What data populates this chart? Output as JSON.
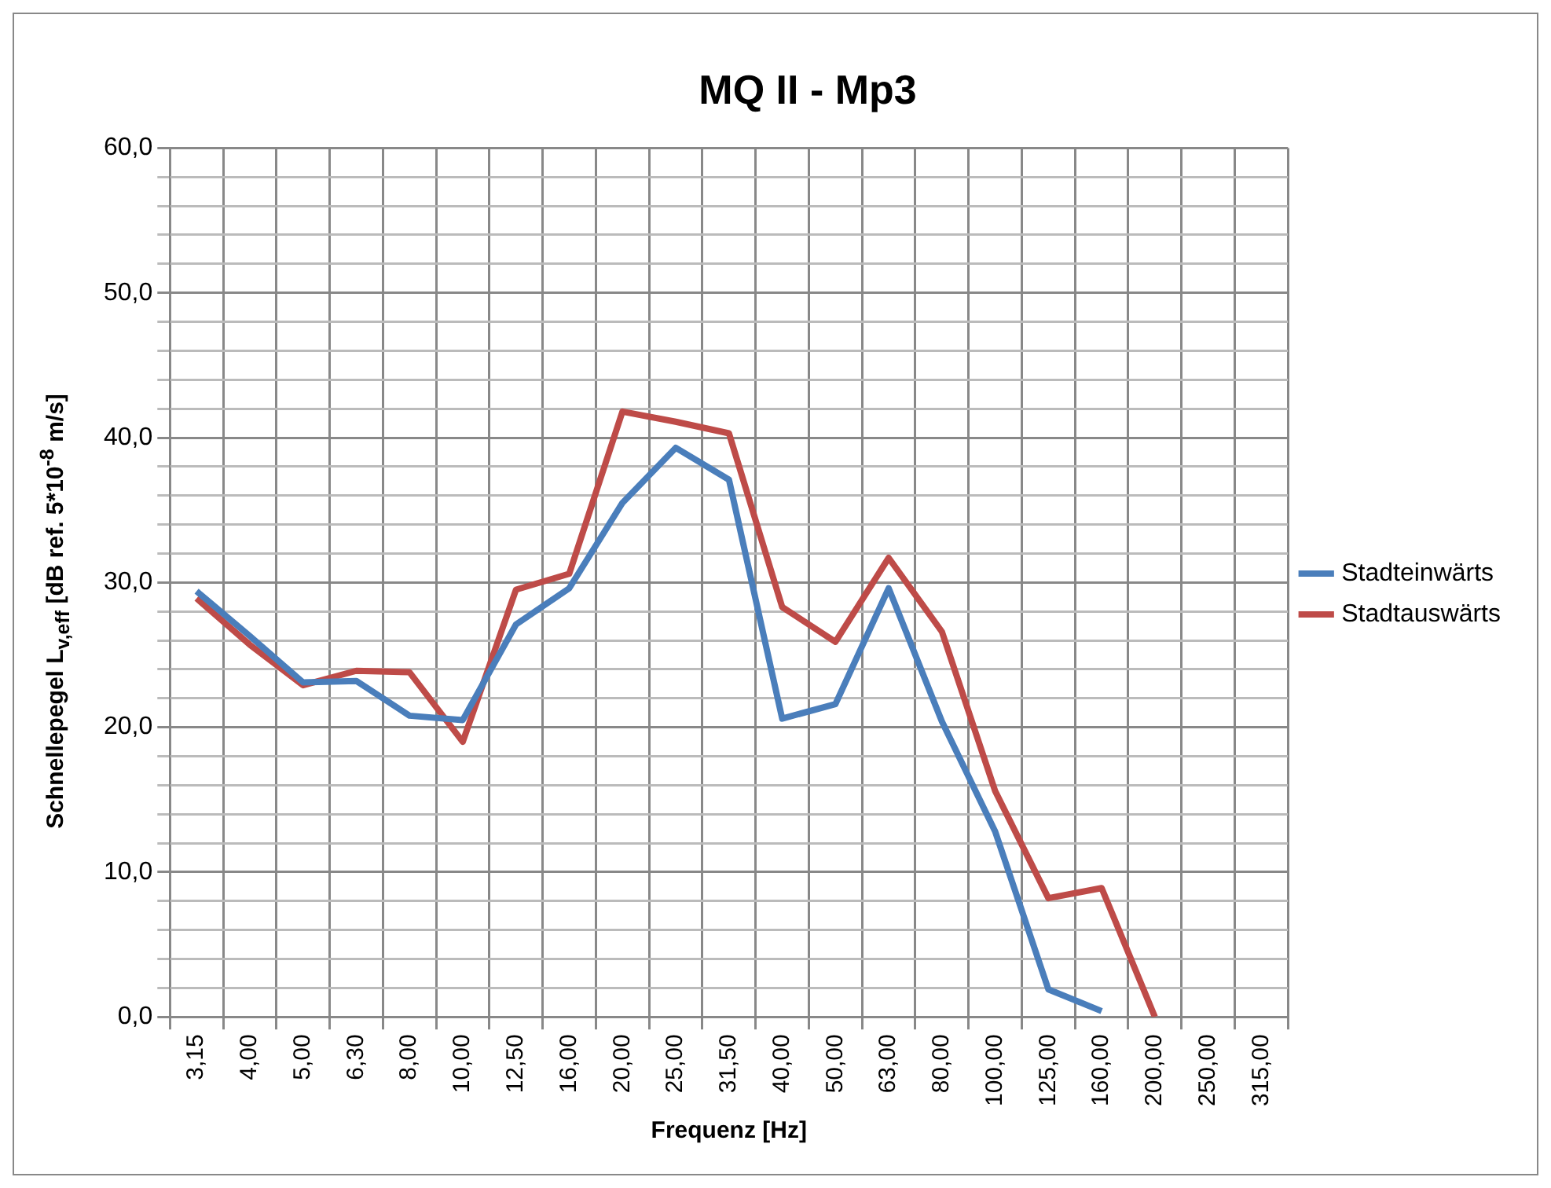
{
  "chart_data": {
    "type": "line",
    "title": "MQ II - Mp3",
    "xlabel": "Frequenz [Hz]",
    "ylabel": "Schnellepegel L$_{v,eff}$ [dB ref. 5*10$^{-8}$ m/s]",
    "categories": [
      "3,15",
      "4,00",
      "5,00",
      "6,30",
      "8,00",
      "10,00",
      "12,50",
      "16,00",
      "20,00",
      "25,00",
      "31,50",
      "40,00",
      "50,00",
      "63,00",
      "80,00",
      "100,00",
      "125,00",
      "160,00",
      "200,00",
      "250,00",
      "315,00"
    ],
    "series": [
      {
        "name": "Stadteinwärts",
        "color": "#4a7ebb",
        "values": [
          29.4,
          26.3,
          23.1,
          23.2,
          20.8,
          20.5,
          27.1,
          29.6,
          35.5,
          39.3,
          37.1,
          20.6,
          21.6,
          29.6,
          20.4,
          12.8,
          1.9,
          0.4,
          null,
          null,
          null
        ]
      },
      {
        "name": "Stadtauswärts",
        "color": "#be4b48",
        "values": [
          28.9,
          25.7,
          22.9,
          23.9,
          23.8,
          19.0,
          29.5,
          30.6,
          41.8,
          41.1,
          40.3,
          28.3,
          25.9,
          31.7,
          26.6,
          15.6,
          8.2,
          8.9,
          0.0,
          null,
          null
        ]
      }
    ],
    "ylim": [
      0,
      60
    ],
    "yticks": [
      {
        "value": 0,
        "label": "0,0"
      },
      {
        "value": 2,
        "label": null
      },
      {
        "value": 4,
        "label": null
      },
      {
        "value": 6,
        "label": null
      },
      {
        "value": 8,
        "label": null
      },
      {
        "value": 10,
        "label": "10,0"
      },
      {
        "value": 12,
        "label": null
      },
      {
        "value": 14,
        "label": null
      },
      {
        "value": 16,
        "label": null
      },
      {
        "value": 18,
        "label": null
      },
      {
        "value": 20,
        "label": "20,0"
      },
      {
        "value": 22,
        "label": null
      },
      {
        "value": 24,
        "label": null
      },
      {
        "value": 26,
        "label": null
      },
      {
        "value": 28,
        "label": null
      },
      {
        "value": 30,
        "label": "30,0"
      },
      {
        "value": 32,
        "label": null
      },
      {
        "value": 34,
        "label": null
      },
      {
        "value": 36,
        "label": null
      },
      {
        "value": 38,
        "label": null
      },
      {
        "value": 40,
        "label": "40,0"
      },
      {
        "value": 42,
        "label": null
      },
      {
        "value": 44,
        "label": null
      },
      {
        "value": 46,
        "label": null
      },
      {
        "value": 48,
        "label": null
      },
      {
        "value": 50,
        "label": "50,0"
      },
      {
        "value": 52,
        "label": null
      },
      {
        "value": 54,
        "label": null
      },
      {
        "value": 56,
        "label": null
      },
      {
        "value": 58,
        "label": null
      },
      {
        "value": 60,
        "label": "60,0"
      }
    ],
    "grid": true,
    "legend": "right",
    "marker": "none",
    "line_style": "solid"
  }
}
